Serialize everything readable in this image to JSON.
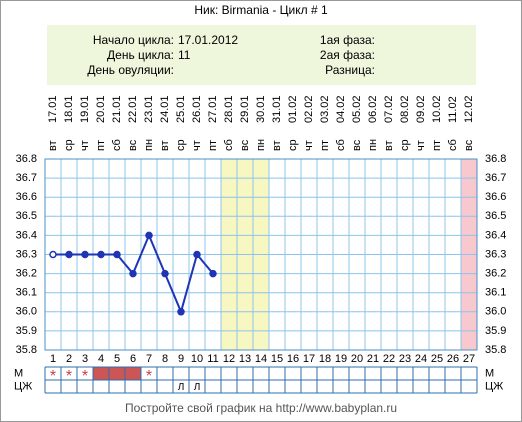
{
  "chart_data": {
    "type": "line",
    "title": "Ник: Birmania - Цикл # 1",
    "info_left": [
      {
        "label": "Начало цикла:",
        "value": "17.01.2012"
      },
      {
        "label": "День цикла:",
        "value": "11"
      },
      {
        "label": "День овуляции:",
        "value": ""
      }
    ],
    "info_right": [
      {
        "label": "1ая фаза:"
      },
      {
        "label": "2ая фаза:"
      },
      {
        "label": "Разница:"
      }
    ],
    "dates": [
      "17.01",
      "18.01",
      "19.01",
      "20.01",
      "21.01",
      "22.01",
      "23.01",
      "24.01",
      "25.01",
      "26.01",
      "27.01",
      "28.01",
      "29.01",
      "30.01",
      "31.01",
      "01.02",
      "02.02",
      "03.02",
      "04.02",
      "05.02",
      "06.02",
      "07.02",
      "08.02",
      "09.02",
      "10.02",
      "11.02",
      "12.02"
    ],
    "weekdays": [
      "вт",
      "ср",
      "чт",
      "пт",
      "сб",
      "вс",
      "пн",
      "вт",
      "ср",
      "чт",
      "пт",
      "сб",
      "вс",
      "пн",
      "вт",
      "ср",
      "чт",
      "пт",
      "сб",
      "вс",
      "пн",
      "вт",
      "ср",
      "чт",
      "пт",
      "сб",
      "вс"
    ],
    "days": [
      1,
      2,
      3,
      4,
      5,
      6,
      7,
      8,
      9,
      10,
      11,
      12,
      13,
      14,
      15,
      16,
      17,
      18,
      19,
      20,
      21,
      22,
      23,
      24,
      25,
      26,
      27
    ],
    "values": [
      36.3,
      36.3,
      36.3,
      36.3,
      36.3,
      36.2,
      36.4,
      36.2,
      36,
      36.3,
      36.2,
      null,
      null,
      null,
      null,
      null,
      null,
      null,
      null,
      null,
      null,
      null,
      null,
      null,
      null,
      null,
      null
    ],
    "color": "#1f35b5",
    "ylim": [
      35.8,
      36.8
    ],
    "yticks": [
      35.8,
      35.9,
      {
        "value": 36,
        "label": "36.0"
      },
      36.1,
      36.2,
      36.3,
      36.4,
      36.5,
      36.6,
      36.7,
      36.8
    ],
    "grid": true,
    "highlights": [
      {
        "days": [
          12,
          13,
          14
        ],
        "color": "#f7f7c2"
      },
      {
        "days": [
          27
        ],
        "color": "#f8c8cf"
      }
    ],
    "m_label": "М",
    "m_marks": [
      "*",
      "*",
      "*",
      null,
      null,
      null,
      "*",
      null,
      null,
      null,
      null,
      null,
      null,
      null,
      null,
      null,
      null,
      null,
      null,
      null,
      null,
      null,
      null,
      null,
      null,
      null,
      null
    ],
    "m_filled_days": [
      4,
      5,
      6
    ],
    "m_fill_color": "#cc5555",
    "czh_label": "ЦЖ",
    "czh_marks": [
      null,
      null,
      null,
      null,
      null,
      null,
      null,
      null,
      "Л",
      "Л",
      null,
      null,
      null,
      null,
      null,
      null,
      null,
      null,
      null,
      null,
      null,
      null,
      null,
      null,
      null,
      null,
      null
    ],
    "footer": "Постройте свой график на http://www.babyplan.ru"
  }
}
